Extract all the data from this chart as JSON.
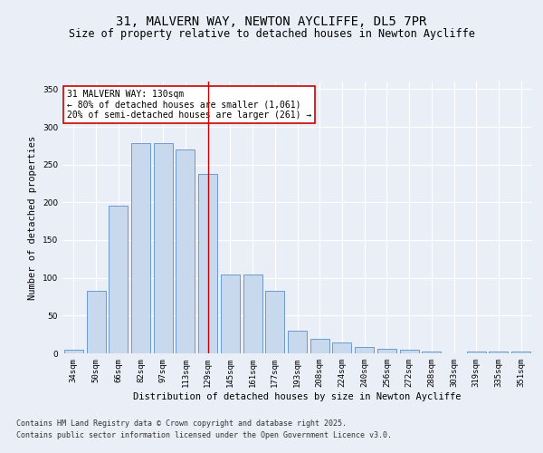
{
  "title_line1": "31, MALVERN WAY, NEWTON AYCLIFFE, DL5 7PR",
  "title_line2": "Size of property relative to detached houses in Newton Aycliffe",
  "xlabel": "Distribution of detached houses by size in Newton Aycliffe",
  "ylabel": "Number of detached properties",
  "categories": [
    "34sqm",
    "50sqm",
    "66sqm",
    "82sqm",
    "97sqm",
    "113sqm",
    "129sqm",
    "145sqm",
    "161sqm",
    "177sqm",
    "193sqm",
    "208sqm",
    "224sqm",
    "240sqm",
    "256sqm",
    "272sqm",
    "288sqm",
    "303sqm",
    "319sqm",
    "335sqm",
    "351sqm"
  ],
  "values": [
    5,
    83,
    196,
    278,
    278,
    270,
    238,
    105,
    104,
    83,
    30,
    19,
    15,
    8,
    6,
    5,
    3,
    0,
    2,
    3,
    2
  ],
  "bar_color": "#c9d9ed",
  "bar_edge_color": "#5b8fc9",
  "ref_line_x": 6,
  "ref_line_color": "#cc0000",
  "annotation_text": "31 MALVERN WAY: 130sqm\n← 80% of detached houses are smaller (1,061)\n20% of semi-detached houses are larger (261) →",
  "annotation_box_color": "#ffffff",
  "annotation_box_edge": "#cc0000",
  "ylim": [
    0,
    360
  ],
  "yticks": [
    0,
    50,
    100,
    150,
    200,
    250,
    300,
    350
  ],
  "bg_color": "#eaeff7",
  "plot_bg_color": "#eaeff7",
  "footer_line1": "Contains HM Land Registry data © Crown copyright and database right 2025.",
  "footer_line2": "Contains public sector information licensed under the Open Government Licence v3.0.",
  "title_fontsize": 10,
  "subtitle_fontsize": 8.5,
  "axis_label_fontsize": 7.5,
  "tick_fontsize": 6.5,
  "annotation_fontsize": 7,
  "footer_fontsize": 6
}
